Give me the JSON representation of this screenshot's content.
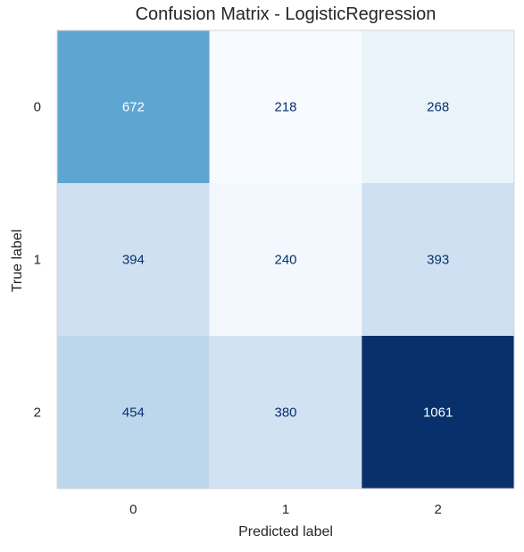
{
  "chart_data": {
    "type": "heatmap",
    "title": "Confusion Matrix - LogisticRegression",
    "xlabel": "Predicted label",
    "ylabel": "True label",
    "x_categories": [
      "0",
      "1",
      "2"
    ],
    "y_categories": [
      "0",
      "1",
      "2"
    ],
    "values": [
      [
        672,
        218,
        268
      ],
      [
        394,
        240,
        393
      ],
      [
        454,
        380,
        1061
      ]
    ],
    "colormap": "Blues",
    "color_low": "#f7fbff",
    "color_high": "#08306b",
    "text_dark": "#08306b",
    "text_light": "#ffffff",
    "grid": false,
    "colorbar": false
  }
}
